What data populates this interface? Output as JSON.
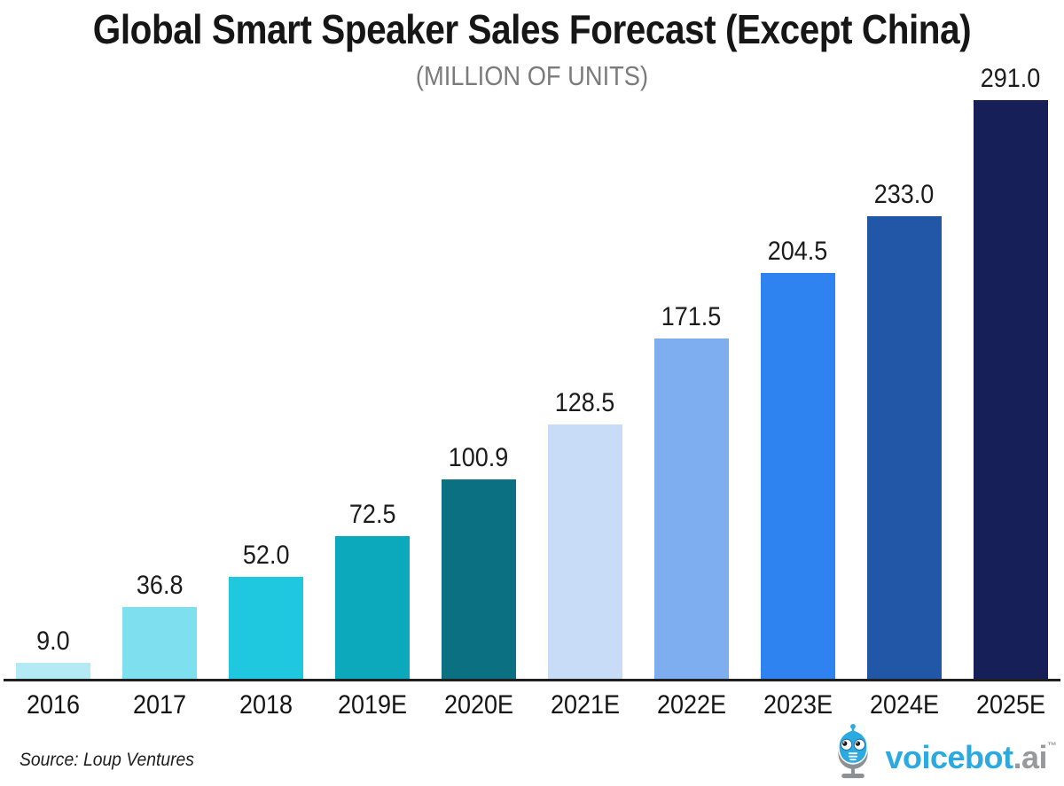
{
  "header": {
    "title": "Global Smart Speaker Sales Forecast (Except China)",
    "subtitle": "(MILLION OF UNITS)"
  },
  "chart_data": {
    "type": "bar",
    "title": "Global Smart Speaker Sales Forecast (Except China)",
    "subtitle": "(MILLION OF UNITS)",
    "unit": "million units",
    "categories": [
      "2016",
      "2017",
      "2018",
      "2019E",
      "2020E",
      "2021E",
      "2022E",
      "2023E",
      "2024E",
      "2025E"
    ],
    "values": [
      9.0,
      36.8,
      52.0,
      72.5,
      100.9,
      128.5,
      171.5,
      204.5,
      233.0,
      291.0
    ],
    "value_labels": [
      "9.0",
      "36.8",
      "52.0",
      "72.5",
      "100.9",
      "128.5",
      "171.5",
      "204.5",
      "233.0",
      "291.0"
    ],
    "bar_colors": [
      "#b4eaf3",
      "#7edfee",
      "#1fc8de",
      "#0ca9bd",
      "#0a7082",
      "#c8dcf7",
      "#7faef0",
      "#2f83f0",
      "#2157a6",
      "#161f58"
    ],
    "xlabel": "",
    "ylabel": "",
    "ylim": [
      0,
      300
    ],
    "grid": false,
    "legend": null,
    "axis_line_color": "#1f1f1f",
    "label_color": "#1b1b1b"
  },
  "footer": {
    "source": "Source: Loup Ventures",
    "logo": {
      "brand": "voicebot",
      "domain": ".ai",
      "tm": "™",
      "brand_color": "#2ba9e1",
      "domain_color": "#97999b"
    }
  }
}
